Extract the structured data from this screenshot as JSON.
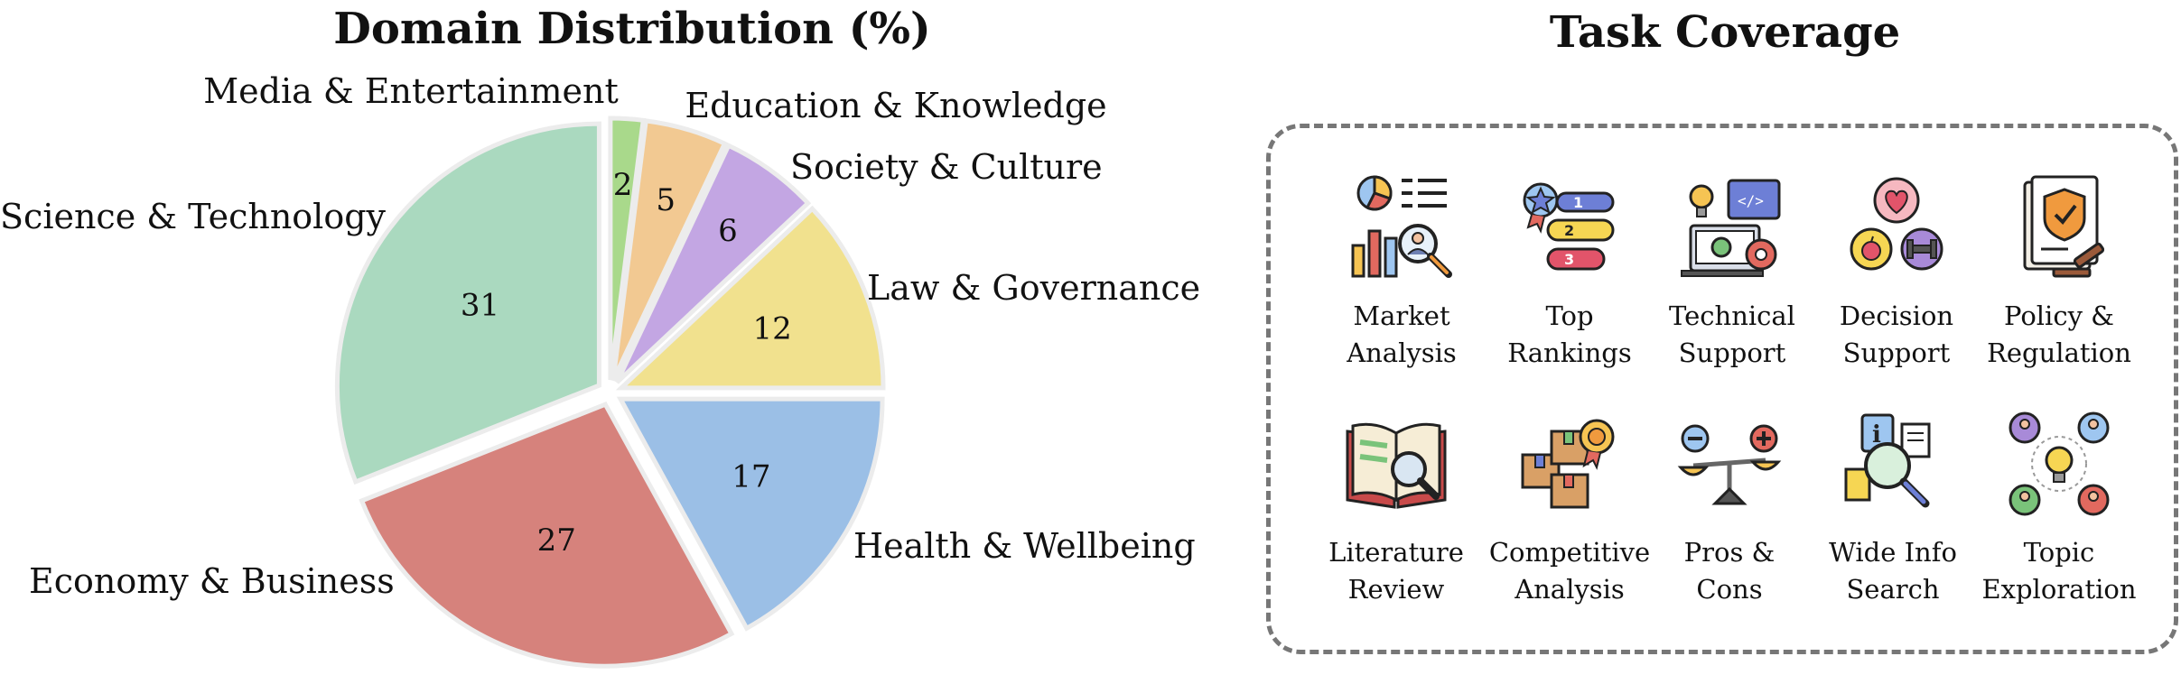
{
  "chart_data": {
    "type": "pie",
    "title": "Domain Distribution (%)",
    "slices": [
      {
        "label": "Media & Entertainment",
        "value": 2,
        "color": "#a9d98b"
      },
      {
        "label": "Education & Knowledge",
        "value": 5,
        "color": "#f2c992"
      },
      {
        "label": "Society & Culture",
        "value": 6,
        "color": "#c3a6e3"
      },
      {
        "label": "Law & Governance",
        "value": 12,
        "color": "#f1e18e"
      },
      {
        "label": "Health & Wellbeing",
        "value": 17,
        "color": "#9bbfe6"
      },
      {
        "label": "Economy & Business",
        "value": 27,
        "color": "#d6827c"
      },
      {
        "label": "Science & Technology",
        "value": 31,
        "color": "#aad9bf"
      }
    ],
    "exploded": true
  },
  "task_coverage": {
    "title": "Task Coverage",
    "tasks": [
      {
        "line1": "Market",
        "line2": "Analysis",
        "icon": "market-analysis-icon"
      },
      {
        "line1": "Top",
        "line2": "Rankings",
        "icon": "top-rankings-icon"
      },
      {
        "line1": "Technical",
        "line2": "Support",
        "icon": "technical-support-icon"
      },
      {
        "line1": "Decision",
        "line2": "Support",
        "icon": "decision-support-icon"
      },
      {
        "line1": "Policy &",
        "line2": "Regulation",
        "icon": "policy-regulation-icon"
      },
      {
        "line1": "Literature",
        "line2": "Review",
        "icon": "literature-review-icon"
      },
      {
        "line1": "Competitive",
        "line2": "Analysis",
        "icon": "competitive-analysis-icon"
      },
      {
        "line1": "Pros &",
        "line2": "Cons",
        "icon": "pros-cons-icon"
      },
      {
        "line1": "Wide Info",
        "line2": "Search",
        "icon": "wide-info-search-icon"
      },
      {
        "line1": "Topic",
        "line2": "Exploration",
        "icon": "topic-exploration-icon"
      }
    ]
  }
}
